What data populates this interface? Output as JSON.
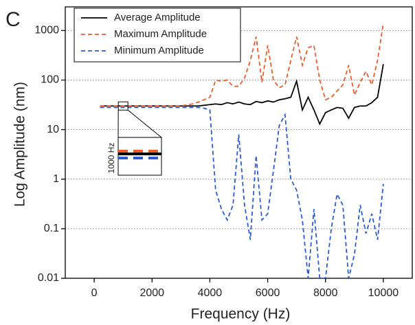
{
  "chart_data": {
    "type": "line",
    "panel_label": "C",
    "x_label": "Frequency (Hz)",
    "y_label": "Log Amplitude (nm)",
    "inset_label": "1000 Hz",
    "log_y": true,
    "grid": true,
    "legend": "upper left",
    "xlim": [
      -1000,
      11000
    ],
    "xticks": [
      0,
      2000,
      4000,
      6000,
      8000,
      10000
    ],
    "ylim": [
      0.01,
      3000
    ],
    "yticks": [
      0.01,
      0.1,
      1,
      10,
      100,
      1000
    ],
    "x": [
      200,
      1000,
      2000,
      3000,
      3400,
      3600,
      3800,
      4000,
      4200,
      4400,
      4600,
      4800,
      5000,
      5200,
      5400,
      5600,
      5800,
      6000,
      6200,
      6400,
      6600,
      6800,
      7000,
      7200,
      7400,
      7600,
      7800,
      8000,
      8200,
      8400,
      8600,
      8800,
      9000,
      9200,
      9400,
      9600,
      9800,
      10000
    ],
    "series": [
      {
        "name": "Average Amplitude",
        "color": "#000000",
        "linestyle": "solid",
        "values": [
          30,
          30,
          30,
          30,
          30,
          30,
          31,
          32,
          33,
          32,
          35,
          33,
          36,
          33,
          32,
          37,
          35,
          38,
          36,
          40,
          42,
          45,
          95,
          25,
          45,
          25,
          13,
          22,
          25,
          28,
          27,
          17,
          28,
          30,
          30,
          35,
          45,
          210
        ]
      },
      {
        "name": "Maximum Amplitude",
        "color": "#f05a28",
        "linestyle": "dashed",
        "values": [
          30,
          30,
          30,
          30,
          33,
          36,
          40,
          45,
          100,
          95,
          100,
          75,
          75,
          110,
          250,
          750,
          90,
          500,
          100,
          70,
          80,
          250,
          750,
          200,
          450,
          500,
          100,
          40,
          45,
          60,
          80,
          200,
          50,
          90,
          150,
          80,
          250,
          1400
        ]
      },
      {
        "name": "Minimum Amplitude",
        "color": "#2a5bd7",
        "linestyle": "dashed",
        "values": [
          28,
          28,
          28,
          28,
          28,
          28,
          27,
          25,
          0.6,
          0.25,
          0.15,
          0.3,
          8,
          0.3,
          0.06,
          3,
          0.15,
          0.2,
          1.5,
          12,
          20,
          1,
          0.6,
          0.15,
          0.01,
          0.25,
          0.01,
          0.01,
          0.1,
          0.5,
          0.3,
          0.01,
          0.03,
          0.3,
          0.08,
          0.2,
          0.06,
          0.8
        ]
      }
    ]
  }
}
